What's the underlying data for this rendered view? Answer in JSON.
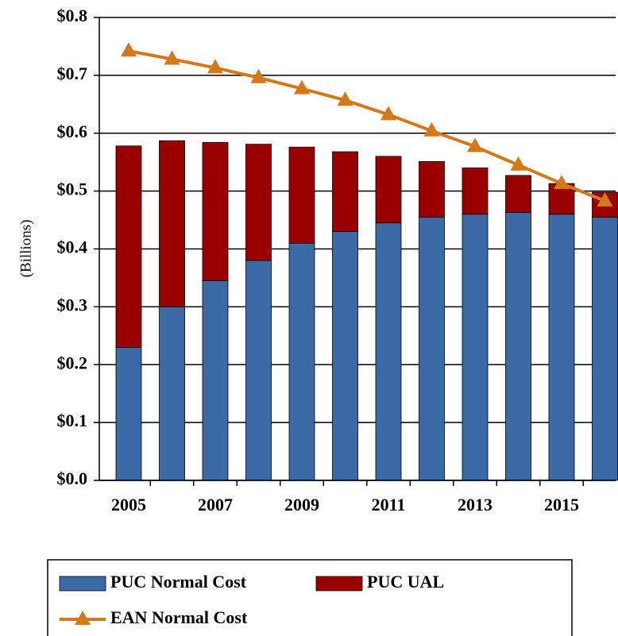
{
  "chart_data": {
    "type": "stacked_bar_line",
    "y_label": "(Billions)",
    "categories": [
      "2005",
      null,
      "2007",
      null,
      "2009",
      null,
      "2011",
      null,
      "2013",
      null,
      "2015",
      null
    ],
    "series": [
      {
        "name": "PUC Normal Cost",
        "type": "bar",
        "color": "#3b6aa6",
        "values": [
          0.23,
          0.3,
          0.345,
          0.38,
          0.41,
          0.43,
          0.445,
          0.455,
          0.46,
          0.463,
          0.46,
          0.455
        ]
      },
      {
        "name": "PUC UAL",
        "type": "bar",
        "color": "#9b0000",
        "values": [
          0.348,
          0.287,
          0.239,
          0.201,
          0.166,
          0.138,
          0.115,
          0.096,
          0.08,
          0.064,
          0.053,
          0.043
        ]
      },
      {
        "name": "EAN Normal Cost",
        "type": "line",
        "color": "#d4781a",
        "values": [
          0.742,
          0.728,
          0.713,
          0.696,
          0.677,
          0.657,
          0.632,
          0.604,
          0.577,
          0.545,
          0.513,
          0.483
        ]
      }
    ],
    "ylim": [
      0,
      0.8
    ],
    "yticks": [
      {
        "value": 0,
        "label": "$0.0"
      },
      {
        "value": 0.1,
        "label": "$0.1"
      },
      {
        "value": 0.2,
        "label": "$0.2"
      },
      {
        "value": 0.3,
        "label": "$0.3"
      },
      {
        "value": 0.4,
        "label": "$0.4"
      },
      {
        "value": 0.5,
        "label": "$0.5"
      },
      {
        "value": 0.6,
        "label": "$0.6"
      },
      {
        "value": 0.7,
        "label": "$0.7"
      },
      {
        "value": 0.8,
        "label": "$0.8"
      }
    ],
    "grid": true
  }
}
